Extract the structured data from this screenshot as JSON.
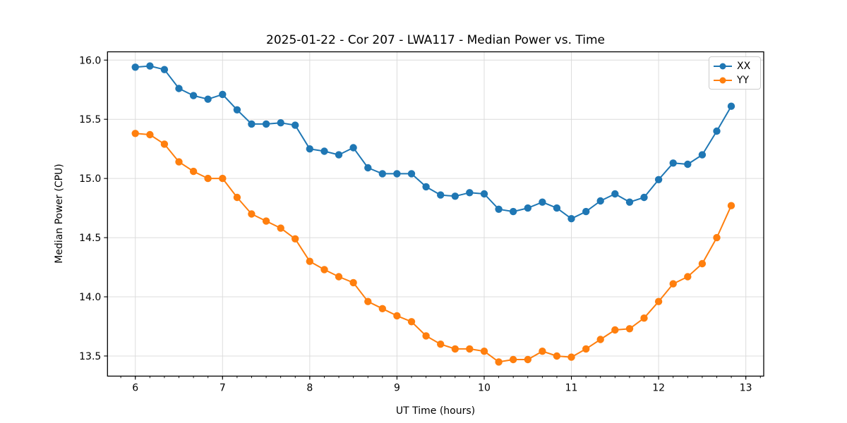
{
  "chart_data": {
    "type": "line",
    "title": "2025-01-22 - Cor 207 - LWA117 - Median Power vs. Time",
    "xlabel": "UT Time (hours)",
    "ylabel": "Median Power (CPU)",
    "legend_position": "upper right",
    "grid": true,
    "grid_color": "#dcdcdc",
    "background": "#ffffff",
    "spine_color": "#000000",
    "xlim": [
      5.681,
      13.205
    ],
    "ylim": [
      13.33,
      16.07
    ],
    "xticks": {
      "values": [
        6,
        7,
        8,
        9,
        10,
        11,
        12,
        13
      ],
      "labels": [
        "6",
        "7",
        "8",
        "9",
        "10",
        "11",
        "12",
        "13"
      ]
    },
    "yticks": {
      "values": [
        13.5,
        14.0,
        14.5,
        15.0,
        15.5,
        16.0
      ],
      "labels": [
        "13.5",
        "14.0",
        "14.5",
        "15.0",
        "15.5",
        "16.0"
      ]
    },
    "x_minor_step": 0.166667,
    "x": [
      6.0,
      6.167,
      6.333,
      6.5,
      6.667,
      6.833,
      7.0,
      7.167,
      7.333,
      7.5,
      7.667,
      7.833,
      8.0,
      8.167,
      8.333,
      8.5,
      8.667,
      8.833,
      9.0,
      9.167,
      9.333,
      9.5,
      9.667,
      9.833,
      10.0,
      10.167,
      10.333,
      10.5,
      10.667,
      10.833,
      11.0,
      11.167,
      11.333,
      11.5,
      11.667,
      11.833,
      12.0,
      12.167,
      12.333,
      12.5,
      12.667,
      12.833
    ],
    "series": [
      {
        "name": "XX",
        "color": "#1f77b4",
        "values": [
          15.94,
          15.95,
          15.92,
          15.76,
          15.7,
          15.67,
          15.71,
          15.58,
          15.46,
          15.46,
          15.47,
          15.45,
          15.25,
          15.23,
          15.2,
          15.26,
          15.09,
          15.04,
          15.04,
          15.04,
          14.93,
          14.86,
          14.85,
          14.88,
          14.87,
          14.74,
          14.72,
          14.75,
          14.8,
          14.75,
          14.66,
          14.72,
          14.81,
          14.87,
          14.8,
          14.84,
          14.99,
          15.13,
          15.12,
          15.2,
          15.4,
          15.61
        ]
      },
      {
        "name": "YY",
        "color": "#ff7f0e",
        "values": [
          15.38,
          15.37,
          15.29,
          15.14,
          15.06,
          15.0,
          15.0,
          14.84,
          14.7,
          14.64,
          14.58,
          14.49,
          14.3,
          14.23,
          14.17,
          14.12,
          13.96,
          13.9,
          13.84,
          13.79,
          13.67,
          13.6,
          13.56,
          13.56,
          13.54,
          13.45,
          13.47,
          13.47,
          13.54,
          13.5,
          13.49,
          13.56,
          13.64,
          13.72,
          13.73,
          13.82,
          13.96,
          14.11,
          14.17,
          14.28,
          14.5,
          14.77
        ]
      }
    ]
  }
}
